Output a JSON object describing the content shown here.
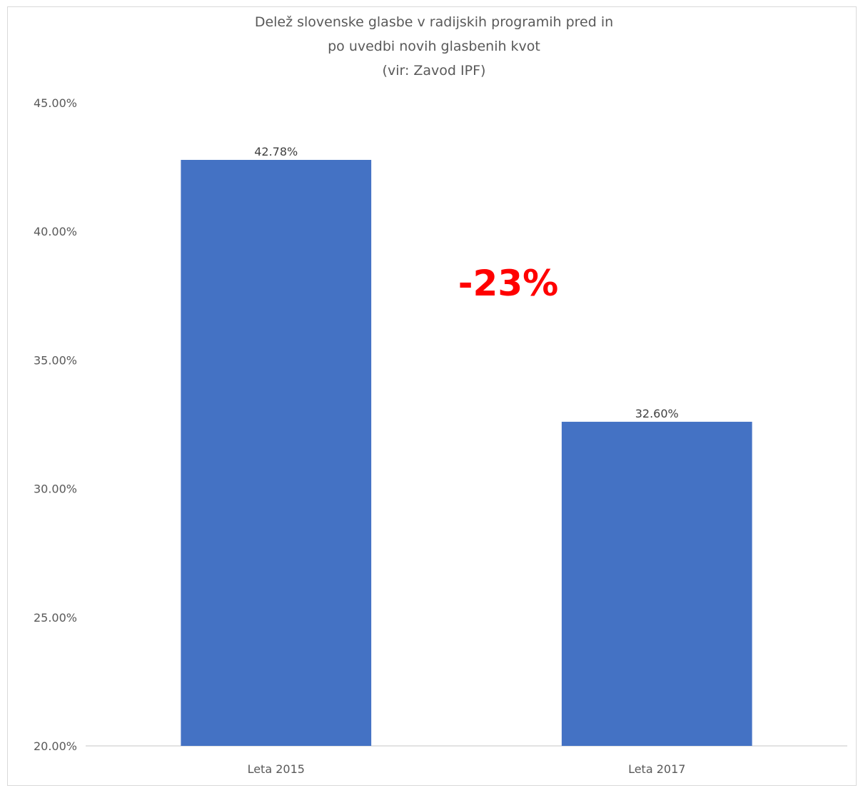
{
  "chart_data": {
    "type": "bar",
    "title": [
      "Delež slovenske glasbe v radijskih programih pred in",
      "po uvedbi novih glasbenih kvot",
      "(vir: Zavod IPF)"
    ],
    "categories": [
      "Leta 2015",
      "Leta 2017"
    ],
    "values": [
      42.78,
      32.6
    ],
    "data_labels": [
      "42.78%",
      "32.60%"
    ],
    "ylim": [
      20,
      45
    ],
    "yticks": [
      20,
      25,
      30,
      35,
      40,
      45
    ],
    "ytick_labels": [
      "20.00%",
      "25.00%",
      "30.00%",
      "35.00%",
      "40.00%",
      "45.00%"
    ],
    "gridlines": false,
    "bar_color": "#4472C4",
    "annotation": {
      "text": "-23%",
      "color": "#FF0000"
    }
  }
}
